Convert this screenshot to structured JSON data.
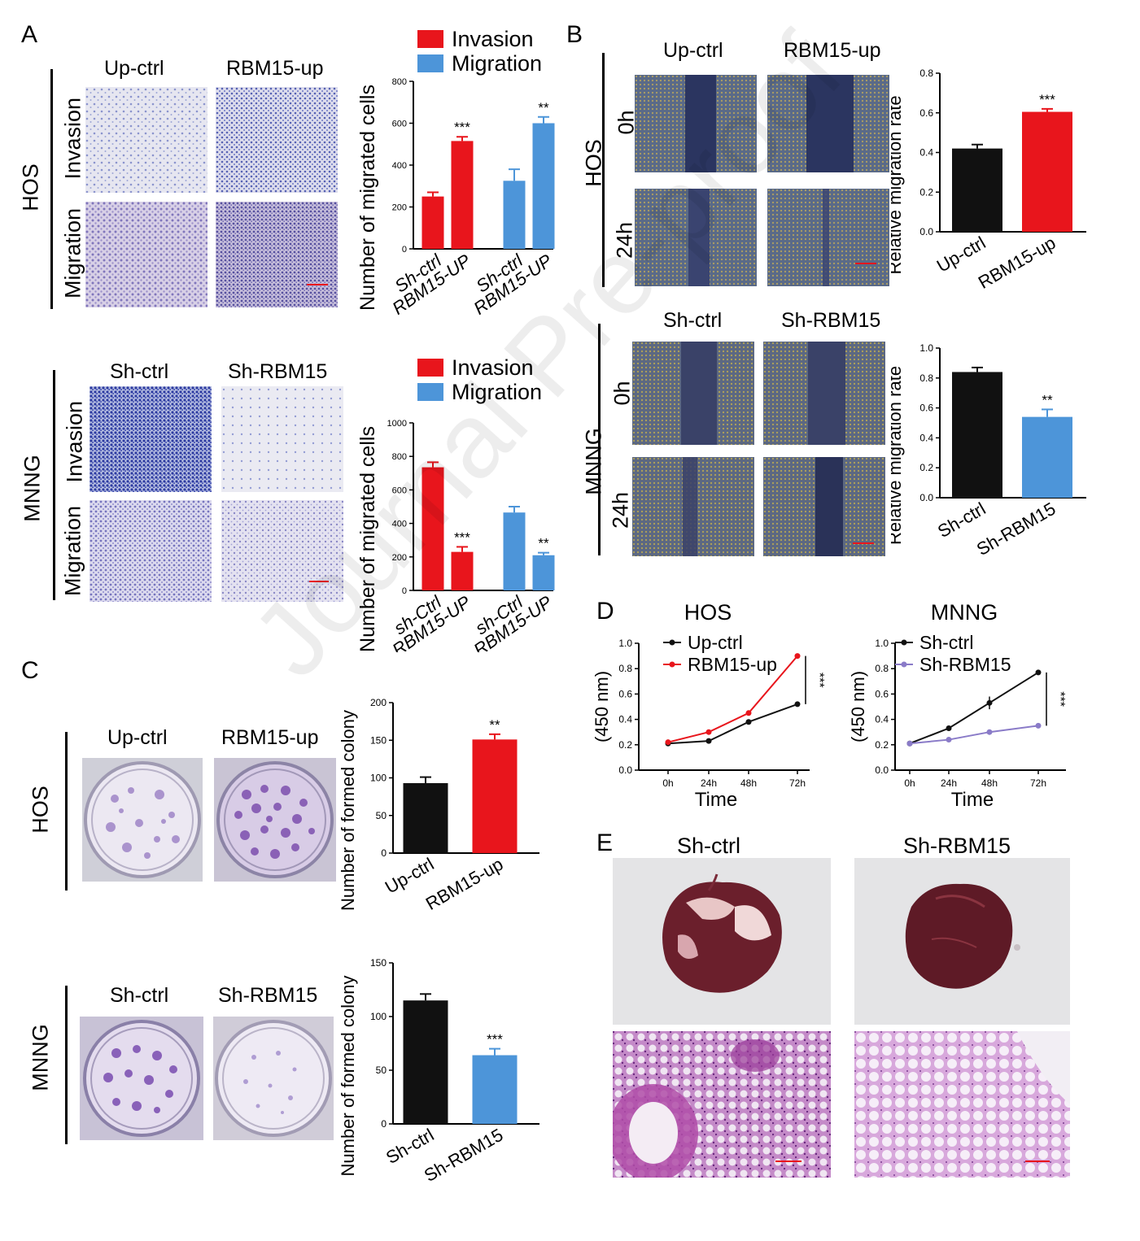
{
  "panels": {
    "a": "A",
    "b": "B",
    "c": "C",
    "d": "D",
    "e": "E"
  },
  "panelA": {
    "hos": {
      "cell_line": "HOS",
      "col1": "Up-ctrl",
      "col2": "RBM15-up",
      "row1": "Invasion",
      "row2": "Migration"
    },
    "mnng": {
      "cell_line": "MNNG",
      "col1": "Sh-ctrl",
      "col2": "Sh-RBM15",
      "row1": "Invasion",
      "row2": "Migration"
    }
  },
  "panelB": {
    "hos": {
      "cell_line": "HOS",
      "col1": "Up-ctrl",
      "col2": "RBM15-up",
      "row1": "0h",
      "row2": "24h"
    },
    "mnng": {
      "cell_line": "MNNG",
      "col1": "Sh-ctrl",
      "col2": "Sh-RBM15",
      "row1": "0h",
      "row2": "24h"
    }
  },
  "panelC": {
    "hos": {
      "cell_line": "HOS",
      "col1": "Up-ctrl",
      "col2": "RBM15-up"
    },
    "mnng": {
      "cell_line": "MNNG",
      "col1": "Sh-ctrl",
      "col2": "Sh-RBM15"
    }
  },
  "panelE": {
    "col1": "Sh-ctrl",
    "col2": "Sh-RBM15"
  },
  "watermark": "Journal Pre-proof",
  "colors": {
    "red": "#e8151c",
    "blue": "#4d95d9",
    "black": "#111111",
    "purple": "#8a7bc8",
    "stain": "#3340a8"
  },
  "chart_data": [
    {
      "id": "a_hos",
      "type": "bar",
      "ylabel": "Number of migrated cells",
      "categories": [
        "Sh-ctrl",
        "RBM15-UP",
        "Sh-ctrl",
        "RBM15-UP"
      ],
      "values": [
        250,
        515,
        325,
        600
      ],
      "errors": [
        20,
        20,
        55,
        30
      ],
      "colors": [
        "red",
        "red",
        "blue",
        "blue"
      ],
      "sig": [
        "",
        "***",
        "",
        "**"
      ],
      "ylim": [
        0,
        800
      ],
      "yticks": [
        0,
        200,
        400,
        600,
        800
      ],
      "legend": [
        "Invasion",
        "Migration"
      ]
    },
    {
      "id": "a_mnng",
      "type": "bar",
      "ylabel": "Number of migrated cells",
      "categories": [
        "sh-Ctrl",
        "RBM15-UP",
        "sh-Ctrl",
        "RBM15-UP"
      ],
      "values": [
        735,
        230,
        465,
        210
      ],
      "errors": [
        30,
        30,
        35,
        15
      ],
      "colors": [
        "red",
        "red",
        "blue",
        "blue"
      ],
      "sig": [
        "",
        "***",
        "",
        "**"
      ],
      "ylim": [
        0,
        1000
      ],
      "yticks": [
        0,
        200,
        400,
        600,
        800,
        1000
      ],
      "legend": [
        "Invasion",
        "Migration"
      ]
    },
    {
      "id": "b_hos",
      "type": "bar",
      "ylabel": "Relative migration rate",
      "categories": [
        "Up-ctrl",
        "RBM15-up"
      ],
      "values": [
        0.42,
        0.605
      ],
      "errors": [
        0.02,
        0.015
      ],
      "colors": [
        "black",
        "red"
      ],
      "sig": [
        "",
        "***"
      ],
      "ylim": [
        0,
        0.8
      ],
      "yticks": [
        "0.0",
        "0.2",
        "0.4",
        "0.6",
        "0.8"
      ]
    },
    {
      "id": "b_mnng",
      "type": "bar",
      "ylabel": "Relative migration rate",
      "categories": [
        "Sh-ctrl",
        "Sh-RBM15"
      ],
      "values": [
        0.84,
        0.54
      ],
      "errors": [
        0.03,
        0.05
      ],
      "colors": [
        "black",
        "blue"
      ],
      "sig": [
        "",
        "**"
      ],
      "ylim": [
        0,
        1.0
      ],
      "yticks": [
        "0.0",
        "0.2",
        "0.4",
        "0.6",
        "0.8",
        "1.0"
      ]
    },
    {
      "id": "c_hos",
      "type": "bar",
      "ylabel": "Number of formed colony",
      "categories": [
        "Up-ctrl",
        "RBM15-up"
      ],
      "values": [
        93,
        151
      ],
      "errors": [
        8,
        7
      ],
      "colors": [
        "black",
        "red"
      ],
      "sig": [
        "",
        "**"
      ],
      "ylim": [
        0,
        200
      ],
      "yticks": [
        0,
        50,
        100,
        150,
        200
      ]
    },
    {
      "id": "c_mnng",
      "type": "bar",
      "ylabel": "Number of formed colony",
      "categories": [
        "Sh-ctrl",
        "Sh-RBM15"
      ],
      "values": [
        115,
        64
      ],
      "errors": [
        6,
        6
      ],
      "colors": [
        "black",
        "blue"
      ],
      "sig": [
        "",
        "***"
      ],
      "ylim": [
        0,
        150
      ],
      "yticks": [
        0,
        50,
        100,
        150
      ]
    },
    {
      "id": "d_hos",
      "type": "line",
      "title": "HOS",
      "xlabel": "Time",
      "ylabel": "(450 nm)",
      "x": [
        "0h",
        "24h",
        "48h",
        "72h"
      ],
      "ylim": [
        0,
        1.0
      ],
      "yticks": [
        "0.0",
        "0.2",
        "0.4",
        "0.6",
        "0.8",
        "1.0"
      ],
      "series": [
        {
          "name": "Up-ctrl",
          "color": "black",
          "values": [
            0.21,
            0.23,
            0.38,
            0.52
          ],
          "errors": [
            0,
            0,
            0,
            0.02
          ]
        },
        {
          "name": "RBM15-up",
          "color": "red",
          "values": [
            0.22,
            0.3,
            0.45,
            0.9
          ],
          "errors": [
            0,
            0,
            0,
            0
          ]
        }
      ],
      "sig": "***"
    },
    {
      "id": "d_mnng",
      "type": "line",
      "title": "MNNG",
      "xlabel": "Time",
      "ylabel": "(450 nm)",
      "x": [
        "0h",
        "24h",
        "48h",
        "72h"
      ],
      "ylim": [
        0,
        1.0
      ],
      "yticks": [
        "0.0",
        "0.2",
        "0.4",
        "0.6",
        "0.8",
        "1.0"
      ],
      "series": [
        {
          "name": "Sh-ctrl",
          "color": "black",
          "values": [
            0.21,
            0.33,
            0.53,
            0.77
          ],
          "errors": [
            0,
            0,
            0.05,
            0
          ]
        },
        {
          "name": "Sh-RBM15",
          "color": "purple",
          "values": [
            0.21,
            0.24,
            0.3,
            0.35
          ],
          "errors": [
            0,
            0,
            0,
            0
          ]
        }
      ],
      "sig": "***"
    }
  ]
}
